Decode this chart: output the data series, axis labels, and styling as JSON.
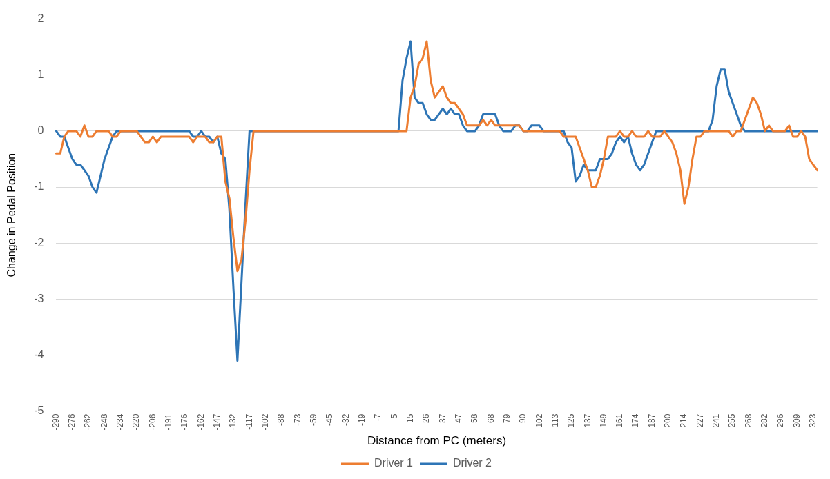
{
  "chart_data": {
    "type": "line",
    "xlabel": "Distance from PC (meters)",
    "ylabel": "Change in Pedal Position",
    "categories": [
      "-290",
      null,
      null,
      null,
      "-276",
      null,
      null,
      null,
      "-262",
      null,
      null,
      null,
      "-248",
      null,
      null,
      null,
      "-234",
      null,
      null,
      null,
      "-220",
      null,
      null,
      null,
      "-206",
      null,
      null,
      null,
      "-191",
      null,
      null,
      null,
      "-176",
      null,
      null,
      null,
      "-162",
      null,
      null,
      null,
      "-147",
      null,
      null,
      null,
      "-132",
      null,
      null,
      null,
      "-117",
      null,
      null,
      null,
      "-102",
      null,
      null,
      null,
      "-88",
      null,
      null,
      null,
      "-73",
      null,
      null,
      null,
      "-59",
      null,
      null,
      null,
      "-45",
      null,
      null,
      null,
      "-32",
      null,
      null,
      null,
      "-19",
      null,
      null,
      null,
      "-7",
      null,
      null,
      null,
      "5",
      null,
      null,
      null,
      "15",
      null,
      null,
      null,
      "26",
      null,
      null,
      null,
      "37",
      null,
      null,
      null,
      "47",
      null,
      null,
      null,
      "58",
      null,
      null,
      null,
      "68",
      null,
      null,
      null,
      "79",
      null,
      null,
      null,
      "90",
      null,
      null,
      null,
      "102",
      null,
      null,
      null,
      "113",
      null,
      null,
      null,
      "125",
      null,
      null,
      null,
      "137",
      null,
      null,
      null,
      "149",
      null,
      null,
      null,
      "161",
      null,
      null,
      null,
      "174",
      null,
      null,
      null,
      "187",
      null,
      null,
      null,
      "200",
      null,
      null,
      null,
      "214",
      null,
      null,
      null,
      "227",
      null,
      null,
      null,
      "241",
      null,
      null,
      null,
      "255",
      null,
      null,
      null,
      "268",
      null,
      null,
      null,
      "282",
      null,
      null,
      null,
      "296",
      null,
      null,
      null,
      "309",
      null,
      null,
      null,
      "323",
      null
    ],
    "series": [
      {
        "name": "Driver 1",
        "color": "#ed7d31",
        "values": [
          -0.4,
          -0.4,
          -0.1,
          0,
          0,
          0,
          -0.1,
          0.1,
          -0.1,
          -0.1,
          0,
          0,
          0,
          0,
          -0.1,
          -0.1,
          0,
          0,
          0,
          0,
          0,
          -0.1,
          -0.2,
          -0.2,
          -0.1,
          -0.2,
          -0.1,
          -0.1,
          -0.1,
          -0.1,
          -0.1,
          -0.1,
          -0.1,
          -0.1,
          -0.2,
          -0.1,
          -0.1,
          -0.1,
          -0.2,
          -0.2,
          -0.1,
          -0.1,
          -0.9,
          -1.2,
          -1.9,
          -2.5,
          -2.3,
          -1.6,
          -0.7,
          0,
          0,
          0,
          0,
          0,
          0,
          0,
          0,
          0,
          0,
          0,
          0,
          0,
          0,
          0,
          0,
          0,
          0,
          0,
          0,
          0,
          0,
          0,
          0,
          0,
          0,
          0,
          0,
          0,
          0,
          0,
          0,
          0,
          0,
          0,
          0,
          0,
          0,
          0,
          0.6,
          0.8,
          1.2,
          1.3,
          1.6,
          0.9,
          0.6,
          0.7,
          0.8,
          0.6,
          0.5,
          0.5,
          0.4,
          0.3,
          0.1,
          0.1,
          0.1,
          0.1,
          0.2,
          0.1,
          0.2,
          0.1,
          0.1,
          0.1,
          0.1,
          0.1,
          0.1,
          0.1,
          0,
          0,
          0,
          0,
          0,
          0,
          0,
          0,
          0,
          0,
          -0.1,
          -0.1,
          -0.1,
          -0.1,
          -0.3,
          -0.5,
          -0.7,
          -1.0,
          -1.0,
          -0.8,
          -0.5,
          -0.1,
          -0.1,
          -0.1,
          0,
          -0.1,
          -0.1,
          0,
          -0.1,
          -0.1,
          -0.1,
          0,
          -0.1,
          -0.1,
          -0.1,
          0,
          -0.1,
          -0.2,
          -0.4,
          -0.7,
          -1.3,
          -1.0,
          -0.5,
          -0.1,
          -0.1,
          0,
          0,
          0,
          0,
          0,
          0,
          0,
          -0.1,
          0,
          0,
          0.2,
          0.4,
          0.6,
          0.5,
          0.3,
          0,
          0.1,
          0,
          0,
          0,
          0,
          0.1,
          -0.1,
          -0.1,
          0,
          -0.1,
          -0.5,
          -0.6,
          -0.7
        ]
      },
      {
        "name": "Driver 2",
        "color": "#2e75b6",
        "values": [
          0,
          -0.1,
          -0.1,
          -0.3,
          -0.5,
          -0.6,
          -0.6,
          -0.7,
          -0.8,
          -1.0,
          -1.1,
          -0.8,
          -0.5,
          -0.3,
          -0.1,
          0,
          0,
          0,
          0,
          0,
          0,
          0,
          0,
          0,
          0,
          0,
          0,
          0,
          0,
          0,
          0,
          0,
          0,
          0,
          -0.1,
          -0.1,
          0,
          -0.1,
          -0.1,
          -0.2,
          -0.1,
          -0.4,
          -0.5,
          -1.4,
          -2.8,
          -4.1,
          -2.7,
          -1.3,
          0,
          0,
          0,
          0,
          0,
          0,
          0,
          0,
          0,
          0,
          0,
          0,
          0,
          0,
          0,
          0,
          0,
          0,
          0,
          0,
          0,
          0,
          0,
          0,
          0,
          0,
          0,
          0,
          0,
          0,
          0,
          0,
          0,
          0,
          0,
          0,
          0,
          0,
          0.9,
          1.3,
          1.6,
          0.6,
          0.5,
          0.5,
          0.3,
          0.2,
          0.2,
          0.3,
          0.4,
          0.3,
          0.4,
          0.3,
          0.3,
          0.1,
          0,
          0,
          0,
          0.1,
          0.3,
          0.3,
          0.3,
          0.3,
          0.1,
          0,
          0,
          0,
          0.1,
          0.1,
          0,
          0,
          0.1,
          0.1,
          0.1,
          0,
          0,
          0,
          0,
          0,
          0,
          -0.2,
          -0.3,
          -0.9,
          -0.8,
          -0.6,
          -0.7,
          -0.7,
          -0.7,
          -0.5,
          -0.5,
          -0.5,
          -0.4,
          -0.2,
          -0.1,
          -0.2,
          -0.1,
          -0.4,
          -0.6,
          -0.7,
          -0.6,
          -0.4,
          -0.2,
          0,
          0,
          0,
          0,
          0,
          0,
          0,
          0,
          0,
          0,
          0,
          0,
          0,
          0,
          0.2,
          0.8,
          1.1,
          1.1,
          0.7,
          0.5,
          0.3,
          0.1,
          0,
          0,
          0,
          0,
          0,
          0,
          0,
          0,
          0,
          0,
          0,
          0,
          0,
          0,
          0,
          0,
          0,
          0,
          0
        ]
      }
    ],
    "ylim": [
      -5,
      2
    ],
    "yticks": [
      -5,
      -4,
      -3,
      -2,
      -1,
      0,
      1,
      2
    ],
    "grid": "y",
    "legend": "bottom",
    "marker": "none",
    "line_style": "solid"
  }
}
